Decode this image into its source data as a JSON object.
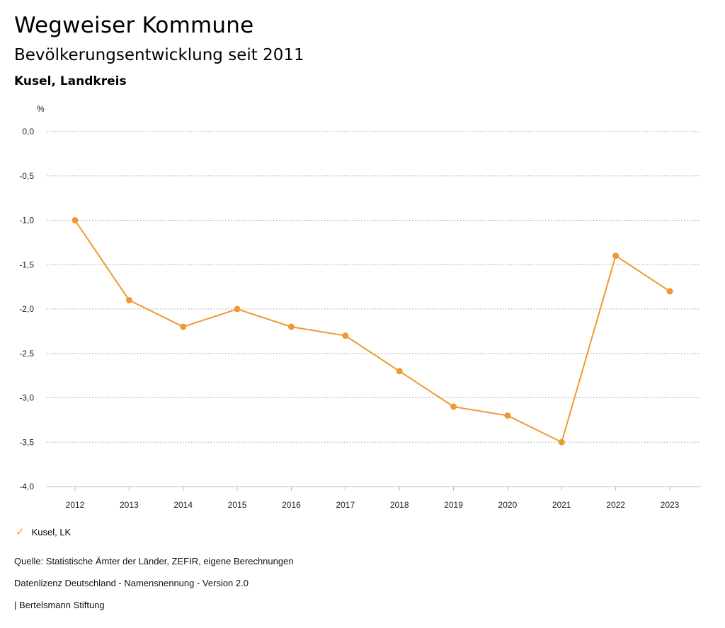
{
  "header": {
    "title": "Wegweiser Kommune",
    "subtitle": "Bevölkerungsentwicklung seit 2011",
    "region": "Kusel, Landkreis"
  },
  "chart_data": {
    "type": "line",
    "unit_label": "%",
    "x": [
      "2012",
      "2013",
      "2014",
      "2015",
      "2016",
      "2017",
      "2018",
      "2019",
      "2020",
      "2021",
      "2022",
      "2023"
    ],
    "series": [
      {
        "name": "Kusel, LK",
        "color": "#ee9933",
        "values": [
          -1.0,
          -1.9,
          -2.2,
          -2.0,
          -2.2,
          -2.3,
          -2.7,
          -3.1,
          -3.2,
          -3.5,
          -1.4,
          -1.8
        ]
      }
    ],
    "yticks": [
      "0,0",
      "-0,5",
      "-1,0",
      "-1,5",
      "-2,0",
      "-2,5",
      "-3,0",
      "-3,5",
      "-4,0"
    ],
    "ytick_values": [
      0,
      -0.5,
      -1.0,
      -1.5,
      -2.0,
      -2.5,
      -3.0,
      -3.5,
      -4.0
    ],
    "ylim": [
      -4.0,
      0.0
    ],
    "grid": true,
    "legend_position": "bottom-left"
  },
  "legend": {
    "label": "Kusel, LK"
  },
  "footer": {
    "source": "Quelle: Statistische Ämter der Länder, ZEFIR, eigene Berechnungen",
    "license": "Datenlizenz Deutschland - Namensnennung - Version 2.0",
    "publisher": "| Bertelsmann Stiftung"
  }
}
